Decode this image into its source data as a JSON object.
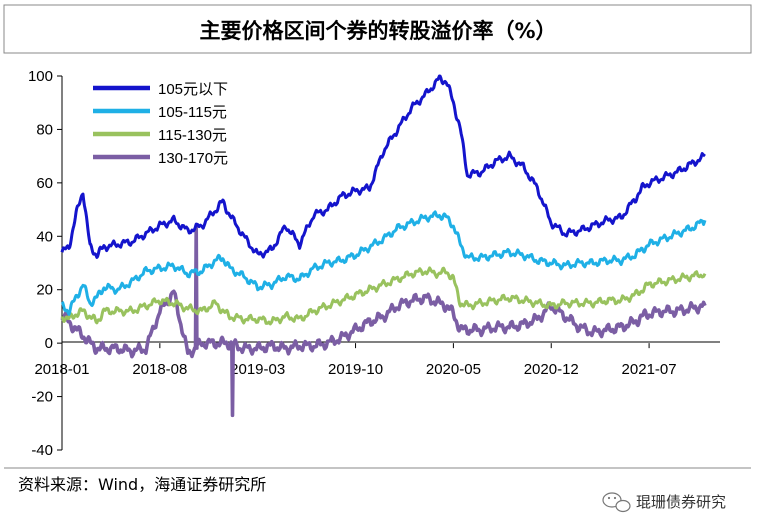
{
  "chart_data": {
    "type": "line",
    "title": "主要价格区间个券的转股溢价率（%）",
    "xlabel": "",
    "ylabel": "",
    "ylim": [
      -40,
      100
    ],
    "yticks": [
      100,
      80,
      60,
      40,
      20,
      0,
      -20,
      -40
    ],
    "xlim": [
      0,
      46
    ],
    "xticks": [
      {
        "label": "2018-01",
        "pos": 0
      },
      {
        "label": "2018-08",
        "pos": 7
      },
      {
        "label": "2019-03",
        "pos": 14
      },
      {
        "label": "2019-10",
        "pos": 21
      },
      {
        "label": "2020-05",
        "pos": 28
      },
      {
        "label": "2020-12",
        "pos": 35
      },
      {
        "label": "2021-07",
        "pos": 42
      }
    ],
    "x": [
      0,
      0.5,
      1,
      1.5,
      2,
      2.5,
      3,
      4,
      5,
      6,
      7,
      8,
      9,
      10,
      11,
      11.5,
      12,
      13,
      14,
      15,
      16,
      17,
      18,
      19,
      20,
      21,
      22,
      23,
      24,
      25,
      26,
      27,
      27.5,
      28,
      28.5,
      29,
      30,
      31,
      32,
      33,
      34,
      35,
      36,
      37,
      38,
      39,
      40,
      41,
      41.5,
      42,
      43,
      44,
      45,
      46
    ],
    "series": [
      {
        "name": "105元以下",
        "color": "#1414cc",
        "values": [
          34,
          36,
          48,
          57,
          36,
          33,
          36,
          37,
          38,
          41,
          44,
          46,
          42,
          44,
          50,
          53,
          48,
          40,
          33,
          35,
          44,
          37,
          48,
          50,
          55,
          57,
          58,
          72,
          80,
          88,
          93,
          99,
          98,
          90,
          80,
          63,
          64,
          68,
          70,
          66,
          58,
          45,
          41,
          42,
          44,
          46,
          47,
          54,
          58,
          60,
          62,
          64,
          67,
          70
        ]
      },
      {
        "name": "105-115元",
        "color": "#1fb0e6",
        "values": [
          14,
          12,
          17,
          22,
          15,
          17,
          21,
          20,
          23,
          27,
          28,
          29,
          26,
          27,
          31,
          32,
          28,
          25,
          21,
          22,
          25,
          24,
          28,
          30,
          31,
          33,
          36,
          39,
          43,
          45,
          47,
          48,
          47,
          44,
          37,
          32,
          32,
          33,
          34,
          33,
          31,
          30,
          29,
          30,
          30,
          31,
          31,
          33,
          35,
          37,
          39,
          41,
          43,
          46
        ]
      },
      {
        "name": "115-130元",
        "color": "#99c25e",
        "values": [
          10,
          9,
          11,
          12,
          10,
          8,
          12,
          12,
          12,
          14,
          16,
          15,
          13,
          12,
          15,
          12,
          10,
          9,
          9,
          8,
          10,
          9,
          12,
          14,
          16,
          18,
          20,
          22,
          24,
          26,
          27,
          26,
          27,
          24,
          15,
          14,
          15,
          16,
          17,
          16,
          15,
          14,
          15,
          15,
          15,
          16,
          16,
          18,
          20,
          22,
          23,
          24,
          25,
          26
        ]
      },
      {
        "name": "130-170元",
        "color": "#7b5ea4",
        "values": [
          10,
          8,
          5,
          3,
          0,
          -2,
          -2,
          -2,
          -3,
          -2,
          12,
          19,
          -4,
          0,
          0,
          0,
          0,
          -2,
          -2,
          -1,
          -2,
          -1,
          -1,
          0,
          2,
          5,
          8,
          10,
          14,
          16,
          17,
          15,
          14,
          11,
          5,
          5,
          5,
          6,
          6,
          7,
          9,
          14,
          10,
          6,
          4,
          5,
          6,
          8,
          10,
          11,
          12,
          12,
          13,
          14
        ]
      }
    ],
    "spikes": [
      {
        "series": "130-170元",
        "x": 9.6,
        "value": 44
      },
      {
        "series": "130-170元",
        "x": 12.2,
        "value": -27
      }
    ]
  },
  "source_text": "资料来源：Wind，海通证券研究所",
  "watermark_text": "琨珊债券研究"
}
